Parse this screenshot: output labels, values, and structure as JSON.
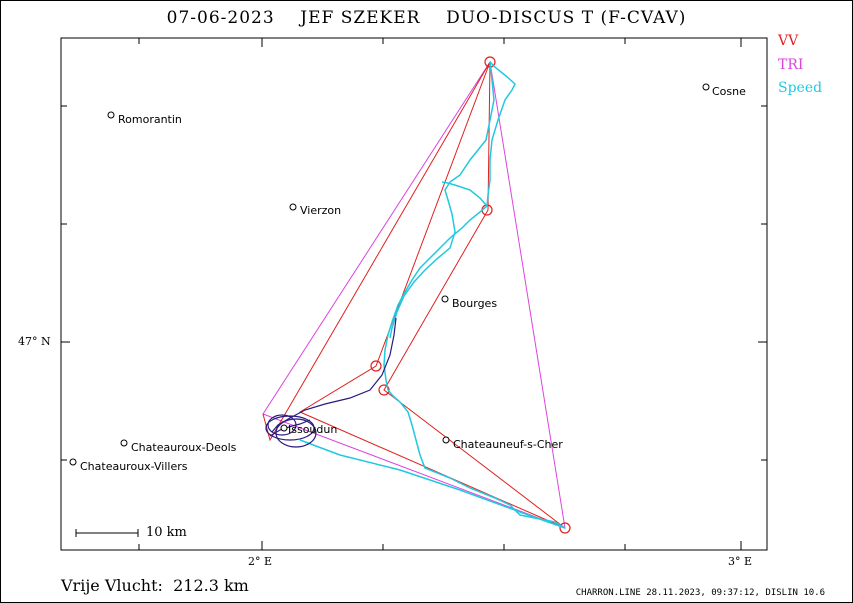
{
  "header": {
    "date": "07-06-2023",
    "pilot": "JEF SZEKER",
    "glider": "DUO-DISCUS T (F-CVAV)"
  },
  "legend": [
    {
      "label": "VV",
      "color": "#e02020"
    },
    {
      "label": "TRI",
      "color": "#dd44dd"
    },
    {
      "label": "Speed",
      "color": "#22c8e0"
    }
  ],
  "colors": {
    "track_low": "#2a1a80",
    "track_speed": "#22c8e0",
    "vv": "#e02020",
    "tri": "#dd44dd"
  },
  "places": [
    {
      "name": "Romorantin"
    },
    {
      "name": "Vierzon"
    },
    {
      "name": "Cosne"
    },
    {
      "name": "Bourges"
    },
    {
      "name": "Issoudun"
    },
    {
      "name": "Chateauroux-Deols"
    },
    {
      "name": "Chateauroux-Villers"
    },
    {
      "name": "Chateauneuf-s-Cher"
    }
  ],
  "axes": {
    "lat_label": "47° N",
    "lon_labels": [
      "2° E",
      "3° E"
    ]
  },
  "scale_bar": {
    "label": "10 km"
  },
  "result": {
    "label": "Vrije Vlucht:",
    "value": "212.3 km"
  },
  "footer": "CHARRON.LINE 28.11.2023, 09:37:12, DISLIN 10.6"
}
